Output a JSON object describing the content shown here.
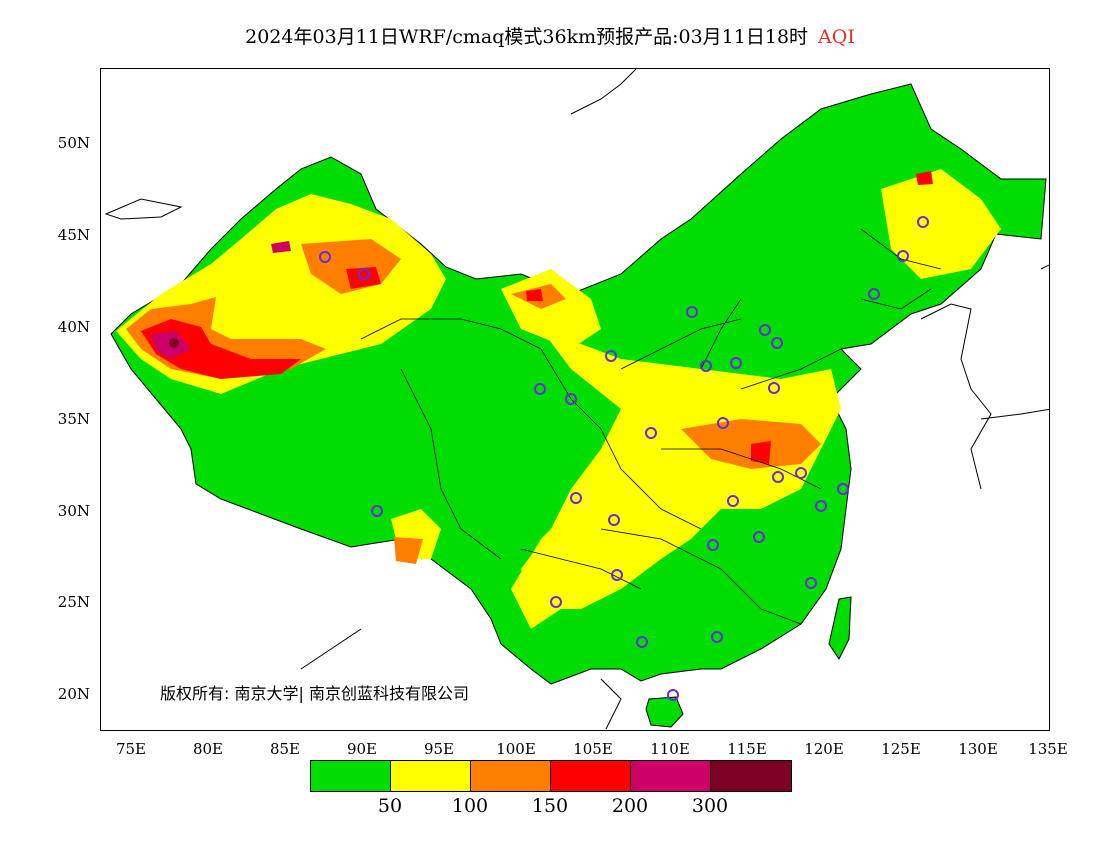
{
  "title": {
    "main": "2024年03月11日WRF/cmaq模式36km预报产品:03月11日18时",
    "label": "AQI"
  },
  "axes": {
    "lat_labels": [
      "50N",
      "45N",
      "40N",
      "35N",
      "30N",
      "25N",
      "20N"
    ],
    "lon_labels": [
      "75E",
      "80E",
      "85E",
      "90E",
      "95E",
      "100E",
      "105E",
      "110E",
      "115E",
      "120E",
      "125E",
      "130E",
      "135E"
    ]
  },
  "copyright": "版权所有: 南京大学| 南京创蓝科技有限公司",
  "legend": {
    "colors": [
      "#00dd00",
      "#ffff00",
      "#ff7e00",
      "#ff0000",
      "#cc0066",
      "#7e0023"
    ],
    "labels": [
      "50",
      "100",
      "150",
      "200",
      "300"
    ]
  },
  "map_colors": {
    "good": "#00dd00",
    "moderate": "#ffff00",
    "sensitive": "#ff7e00",
    "unhealthy": "#ff0000",
    "very_unhealthy": "#cc0066",
    "hazardous": "#7e0023",
    "station_marker": "#6a2bd8"
  }
}
